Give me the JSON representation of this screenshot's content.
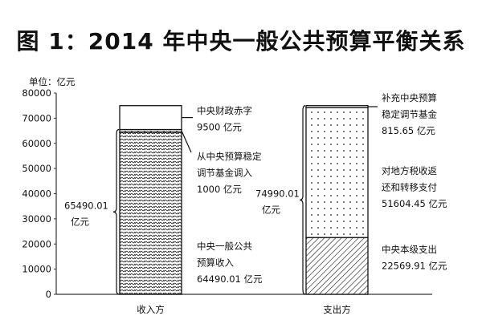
{
  "chart_data": {
    "type": "bar",
    "stacked": true,
    "title": "图 1：2014 年中央一般公共预算平衡关系",
    "ylabel": "单位：亿元",
    "ylim": [
      0,
      80000
    ],
    "yticks": [
      "0",
      "10000",
      "20000",
      "30000",
      "40000",
      "50000",
      "60000",
      "70000",
      "80000"
    ],
    "categories": [
      "收入方",
      "支出方"
    ],
    "grid": false,
    "bars": [
      {
        "category": "收入方",
        "segments": [
          {
            "value": 64490.01,
            "pattern": "wavy-hatch",
            "label": [
              "中央一般公共",
              "预算收入",
              "64490.01 亿元"
            ]
          },
          {
            "value": 1000,
            "pattern": "dots",
            "label": [
              "从中央预算稳定",
              "调节基金调入",
              "1000 亿元"
            ]
          },
          {
            "value": 9500,
            "pattern": "blank",
            "label": [
              "中央财政赤字",
              "9500 亿元"
            ]
          }
        ],
        "brace": {
          "value": 65490.01,
          "label": [
            "65490.01",
            "亿元"
          ]
        }
      },
      {
        "category": "支出方",
        "segments": [
          {
            "value": 22569.91,
            "pattern": "diagonal-hatch",
            "label": [
              "中央本级支出",
              "22569.91 亿元"
            ]
          },
          {
            "value": 51604.45,
            "pattern": "dots",
            "label": [
              "对地方税收返",
              "还和转移支付",
              "51604.45 亿元"
            ]
          },
          {
            "value": 815.65,
            "pattern": "blank",
            "label": [
              "补充中央预算",
              "稳定调节基金",
              "815.65 亿元"
            ]
          }
        ],
        "brace": {
          "value": 74990.01,
          "label": [
            "74990.01",
            "亿元"
          ]
        }
      }
    ]
  }
}
